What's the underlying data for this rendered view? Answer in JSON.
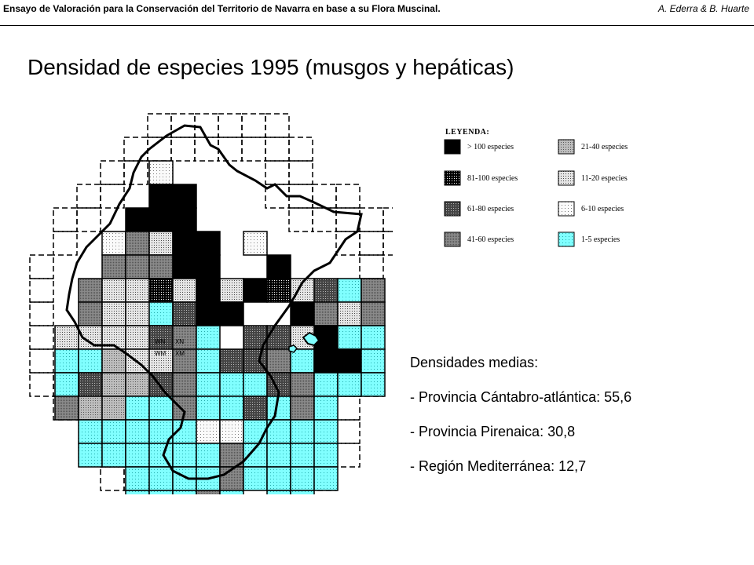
{
  "header": {
    "series_title": "Ensayo de Valoración para la Conservación del Territorio de Navarra  en base a su Flora Muscinal",
    "authors": "A. Ederra & B. Huarte"
  },
  "page_title": "Densidad de especies 1995 (musgos y hepáticas)",
  "legend": {
    "heading": "LEYENDA:",
    "items": [
      {
        "label": "> 100 especies",
        "key": "c100"
      },
      {
        "label": "81-100 especies",
        "key": "c81"
      },
      {
        "label": "61-80 especies",
        "key": "c61"
      },
      {
        "label": "41-60 especies",
        "key": "c41"
      },
      {
        "label": "21-40 especies",
        "key": "c21"
      },
      {
        "label": "11-20 especies",
        "key": "c11"
      },
      {
        "label": "6-10 especies",
        "key": "c6"
      },
      {
        "label": "1-5 especies",
        "key": "c1"
      }
    ]
  },
  "grid_labels": [
    "WN",
    "XN",
    "WM",
    "XM"
  ],
  "stats": {
    "heading": "Densidades medias:",
    "lines": [
      "- Provincia Cántabro-atlántica: 55,6",
      "- Provincia Pirenaica: 30,8",
      "- Región Mediterránea: 12,7"
    ]
  },
  "colors": {
    "cyan": "#80ffff",
    "c100": "#000000",
    "c81": "#222222",
    "c61": "#444444",
    "c41": "#7a7a7a",
    "c21": "#a8a8a8",
    "c11": "#d2d2d2",
    "c6": "#efefef"
  },
  "map_cells": [
    "............................",
    "...........................",
    ".....t.........",
    ".....AA.......",
    "....cAA.......",
    "...xhlAA.T....",
    "...kikAA..a..",
    "..hjmojblcdlefi",
    "..kpjfqcc..bhji",
    ".jlmmnkf.eemcff",
    ".ffgmmhfeeifaaf",
    ".fnggnhfffehfff",
    ".kuuffhffqfhf..",
    "..fffffttffff..",
    "..ffffffhffff..",
    "....ffffhffff..",
    "....fffhf.ff...",
    ".....fffhf.....",
    "......ffff.....",
    "......ffff....."
  ]
}
